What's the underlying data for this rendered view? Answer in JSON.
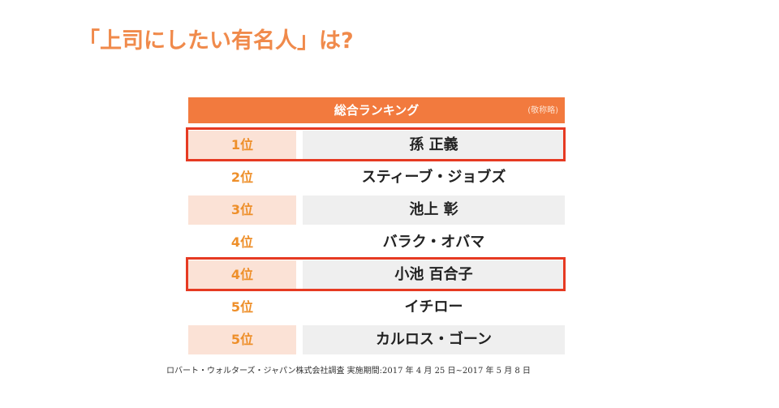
{
  "title": "「上司にしたい有名人」は?",
  "ranking": {
    "header": {
      "title": "総合ランキング",
      "note": "(敬称略)"
    },
    "rows": [
      {
        "rank": "1位",
        "name": "孫 正義",
        "shaded": true,
        "highlighted": true
      },
      {
        "rank": "2位",
        "name": "スティーブ・ジョブズ",
        "shaded": false,
        "highlighted": false
      },
      {
        "rank": "3位",
        "name": "池上 彰",
        "shaded": true,
        "highlighted": false
      },
      {
        "rank": "4位",
        "name": "バラク・オバマ",
        "shaded": false,
        "highlighted": false
      },
      {
        "rank": "4位",
        "name": "小池 百合子",
        "shaded": true,
        "highlighted": true
      },
      {
        "rank": "5位",
        "name": "イチロー",
        "shaded": false,
        "highlighted": false
      },
      {
        "rank": "5位",
        "name": "カルロス・ゴーン",
        "shaded": true,
        "highlighted": false
      }
    ]
  },
  "source": "ロバート・ウォルターズ・ジャパン株式会社調査 実施期間:2017 年 4 月 25 日~2017 年 5 月 8 日",
  "colors": {
    "title": "#f08a4b",
    "header_bg": "#f27a3e",
    "rank_text": "#ee8f2a",
    "rank_shade": "#fbe2d6",
    "name_shade": "#efefef",
    "highlight_border": "#e63a22"
  }
}
